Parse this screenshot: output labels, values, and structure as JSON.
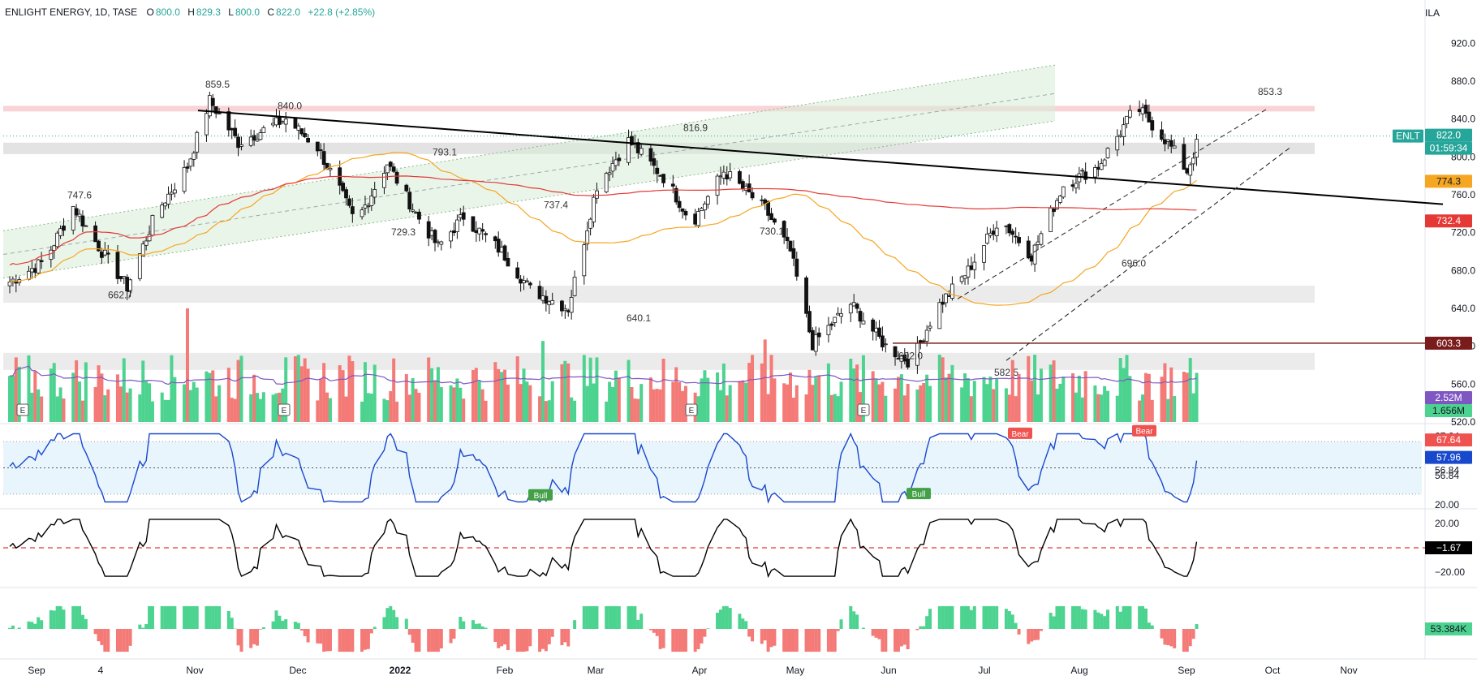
{
  "header": {
    "symbol": "ENLIGHT ENERGY, 1D, TASE",
    "o_label": "O",
    "o_value": "800.0",
    "h_label": "H",
    "h_value": "829.3",
    "l_label": "L",
    "l_value": "800.0",
    "c_label": "C",
    "c_value": "822.0",
    "change": "+22.8 (+2.85%)"
  },
  "currency": "ILA",
  "colors": {
    "up": "#26a69a",
    "down": "#ef5350",
    "vol_up": "#4cd38f",
    "vol_down": "#f47a77",
    "ma50": "#f5a623",
    "ma200": "#e53935",
    "trend": "#000000",
    "rsi": "#1848cc",
    "support": "#7b1c1c"
  },
  "chart_data": [
    {
      "type": "candlestick",
      "title": "ENLIGHT ENERGY, 1D, TASE",
      "x_ticks": [
        "Sep",
        "4",
        "Nov",
        "Dec",
        "2022",
        "Feb",
        "Mar",
        "Apr",
        "May",
        "Jun",
        "Jul",
        "Aug",
        "Sep",
        "Oct",
        "Nov"
      ],
      "y_ticks": [
        "920.0",
        "880.0",
        "840.0",
        "800.0",
        "760.0",
        "720.0",
        "680.0",
        "640.0",
        "600.0",
        "560.0",
        "520.0"
      ],
      "ylim": [
        520,
        940
      ],
      "ohlc_anchors": [
        {
          "date": "2021-08-30",
          "close": 668
        },
        {
          "date": "2021-09-10",
          "close": 690
        },
        {
          "date": "2021-09-19",
          "close": 747.6
        },
        {
          "date": "2021-09-28",
          "close": 700
        },
        {
          "date": "2021-10-06",
          "close": 662.7
        },
        {
          "date": "2021-10-15",
          "close": 740
        },
        {
          "date": "2021-10-25",
          "close": 790
        },
        {
          "date": "2021-11-01",
          "close": 859.5
        },
        {
          "date": "2021-11-10",
          "close": 815
        },
        {
          "date": "2021-11-25",
          "close": 840.0
        },
        {
          "date": "2021-12-05",
          "close": 810
        },
        {
          "date": "2021-12-12",
          "close": 765
        },
        {
          "date": "2021-12-17",
          "close": 729.3
        },
        {
          "date": "2021-12-27",
          "close": 793.1
        },
        {
          "date": "2022-01-05",
          "close": 740
        },
        {
          "date": "2022-01-12",
          "close": 705
        },
        {
          "date": "2022-01-20",
          "close": 737.4
        },
        {
          "date": "2022-02-01",
          "close": 700
        },
        {
          "date": "2022-02-10",
          "close": 660
        },
        {
          "date": "2022-02-22",
          "close": 640.1
        },
        {
          "date": "2022-03-03",
          "close": 770
        },
        {
          "date": "2022-03-13",
          "close": 816.9
        },
        {
          "date": "2022-03-25",
          "close": 775
        },
        {
          "date": "2022-04-02",
          "close": 730.1
        },
        {
          "date": "2022-04-12",
          "close": 785
        },
        {
          "date": "2022-04-25",
          "close": 745
        },
        {
          "date": "2022-05-03",
          "close": 700
        },
        {
          "date": "2022-05-10",
          "close": 602.0
        },
        {
          "date": "2022-05-22",
          "close": 645
        },
        {
          "date": "2022-06-02",
          "close": 600
        },
        {
          "date": "2022-06-10",
          "close": 582.5
        },
        {
          "date": "2022-06-18",
          "close": 640
        },
        {
          "date": "2022-06-28",
          "close": 680
        },
        {
          "date": "2022-07-08",
          "close": 735
        },
        {
          "date": "2022-07-18",
          "close": 696.0
        },
        {
          "date": "2022-07-28",
          "close": 770
        },
        {
          "date": "2022-08-08",
          "close": 790
        },
        {
          "date": "2022-08-20",
          "close": 853.3
        },
        {
          "date": "2022-08-30",
          "close": 815
        },
        {
          "date": "2022-09-05",
          "close": 785
        },
        {
          "date": "2022-09-09",
          "close": 822.0
        }
      ],
      "labels": [
        {
          "text": "859.5",
          "value": 859.5
        },
        {
          "text": "840.0",
          "value": 840.0
        },
        {
          "text": "747.6",
          "value": 747.6
        },
        {
          "text": "662.7",
          "value": 662.7
        },
        {
          "text": "793.1",
          "value": 793.1
        },
        {
          "text": "729.3",
          "value": 729.3
        },
        {
          "text": "737.4",
          "value": 737.4
        },
        {
          "text": "640.1",
          "value": 640.1
        },
        {
          "text": "816.9",
          "value": 816.9
        },
        {
          "text": "730.1",
          "value": 730.1
        },
        {
          "text": "602.0",
          "value": 602.0
        },
        {
          "text": "582.5",
          "value": 582.5
        },
        {
          "text": "696.0",
          "value": 696.0
        },
        {
          "text": "853.3",
          "value": 853.3
        }
      ],
      "zones": [
        {
          "from": 848,
          "to": 854,
          "color": "#f7c9cc"
        },
        {
          "from": 803,
          "to": 815,
          "color": "#dcdcdc"
        },
        {
          "from": 646,
          "to": 664,
          "color": "#e6e6e6"
        },
        {
          "from": 575,
          "to": 593,
          "color": "#e6e6e6"
        }
      ],
      "price_badges": [
        {
          "text": "ENLT",
          "color": "#26a69a"
        },
        {
          "text": "822.0",
          "color": "#26a69a"
        },
        {
          "text": "01:59:34",
          "color": "#26a69a"
        },
        {
          "text": "774.3",
          "value": 774.3,
          "color": "#f5a623"
        },
        {
          "text": "732.4",
          "value": 732.4,
          "color": "#e53935"
        },
        {
          "text": "603.3",
          "value": 603.3,
          "color": "#7b1c1c"
        }
      ],
      "volume": {
        "badges": [
          "2.52M",
          "1.656M"
        ],
        "badge_colors": [
          "#7e57c2",
          "#4cd38f"
        ],
        "events": [
          "E",
          "E",
          "E",
          "E"
        ]
      }
    },
    {
      "type": "line",
      "indicator": "rsi",
      "y_ticks": [
        "67.64",
        "56.84",
        "20.00"
      ],
      "ylim": [
        20,
        80
      ],
      "bands": [
        30,
        70
      ],
      "midline": 50,
      "badges": [
        {
          "text": "67.64",
          "color": "#ef5350"
        },
        {
          "text": "57.96",
          "color": "#1848cc"
        },
        {
          "text": "56.84",
          "color": "#ffffff"
        }
      ],
      "signals": [
        "Bear",
        "Bear",
        "Bull",
        "Bull"
      ]
    },
    {
      "type": "line",
      "indicator": "oscillator",
      "y_ticks": [
        "20.00",
        "−20.00"
      ],
      "ylim": [
        -30,
        30
      ],
      "badge": "−1.67"
    },
    {
      "type": "bar",
      "indicator": "histogram",
      "badge": "53.384K"
    }
  ]
}
